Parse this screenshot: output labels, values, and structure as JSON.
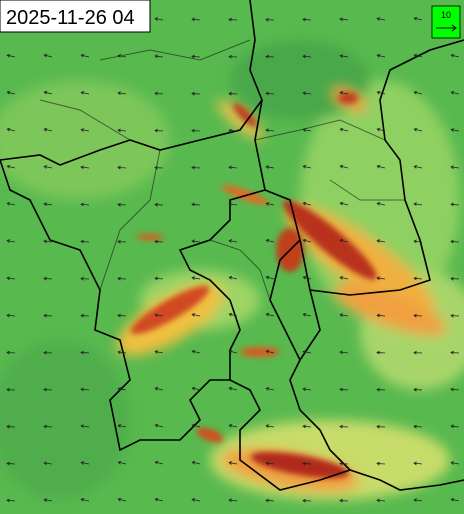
{
  "timestamp": "2025-11-26 04",
  "legend": {
    "label": "10"
  }
}
